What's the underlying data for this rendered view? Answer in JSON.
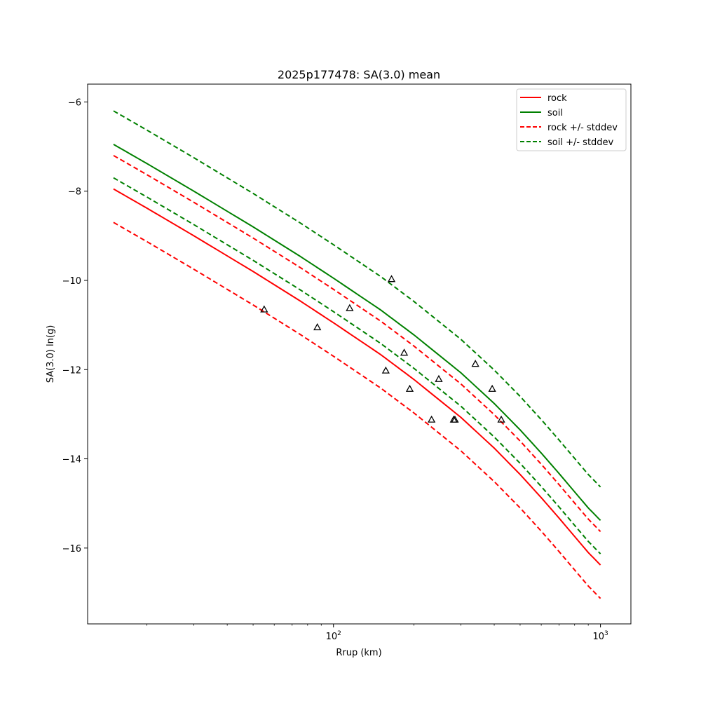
{
  "chart_data": {
    "type": "line",
    "title": "2025p177478: SA(3.0) mean",
    "xlabel": "Rrup (km)",
    "ylabel": "SA(3.0) ln(g)",
    "xscale": "log",
    "xlim": [
      12,
      1300
    ],
    "ylim": [
      -17.7,
      -5.6
    ],
    "grid": false,
    "legend_position": "top-right",
    "x_ticks": [
      {
        "value": 100,
        "base": "10",
        "exp": "2"
      },
      {
        "value": 1000,
        "base": "10",
        "exp": "3"
      }
    ],
    "y_ticks": [
      {
        "value": -6,
        "label": "−6"
      },
      {
        "value": -8,
        "label": "−8"
      },
      {
        "value": -10,
        "label": "−10"
      },
      {
        "value": -12,
        "label": "−12"
      },
      {
        "value": -14,
        "label": "−14"
      },
      {
        "value": -16,
        "label": "−16"
      }
    ],
    "x": [
      15,
      20,
      30,
      50,
      75,
      100,
      150,
      200,
      300,
      400,
      500,
      600,
      700,
      800,
      900,
      1000
    ],
    "series": [
      {
        "name": "rock",
        "color": "#ff0000",
        "dash": "solid",
        "values": [
          -7.95,
          -8.38,
          -9.0,
          -9.8,
          -10.46,
          -10.95,
          -11.66,
          -12.22,
          -13.07,
          -13.76,
          -14.35,
          -14.87,
          -15.33,
          -15.74,
          -16.1,
          -16.38
        ]
      },
      {
        "name": "soil",
        "color": "#008000",
        "dash": "solid",
        "values": [
          -6.95,
          -7.38,
          -8.0,
          -8.8,
          -9.46,
          -9.95,
          -10.66,
          -11.22,
          -12.07,
          -12.76,
          -13.35,
          -13.87,
          -14.33,
          -14.74,
          -15.1,
          -15.38
        ]
      },
      {
        "name": "rock +/- stddev",
        "color": "#ff0000",
        "dash": "dashed",
        "values": [
          -7.2,
          -7.63,
          -8.25,
          -9.05,
          -9.71,
          -10.2,
          -10.91,
          -11.47,
          -12.32,
          -13.01,
          -13.6,
          -14.12,
          -14.58,
          -14.99,
          -15.35,
          -15.63
        ]
      },
      {
        "name": "",
        "color": "#ff0000",
        "dash": "dashed",
        "values": [
          -8.7,
          -9.13,
          -9.75,
          -10.55,
          -11.21,
          -11.7,
          -12.41,
          -12.97,
          -13.82,
          -14.51,
          -15.1,
          -15.62,
          -16.08,
          -16.49,
          -16.85,
          -17.13
        ]
      },
      {
        "name": "soil +/- stddev",
        "color": "#008000",
        "dash": "dashed",
        "values": [
          -6.2,
          -6.63,
          -7.25,
          -8.05,
          -8.71,
          -9.2,
          -9.91,
          -10.47,
          -11.32,
          -12.01,
          -12.6,
          -13.12,
          -13.58,
          -13.99,
          -14.35,
          -14.63
        ]
      },
      {
        "name": "",
        "color": "#008000",
        "dash": "dashed",
        "values": [
          -7.7,
          -8.13,
          -8.75,
          -9.55,
          -10.21,
          -10.7,
          -11.41,
          -11.97,
          -12.82,
          -13.51,
          -14.1,
          -14.62,
          -15.08,
          -15.49,
          -15.85,
          -16.13
        ]
      }
    ],
    "observations": {
      "marker": "triangle",
      "color": "#000000",
      "points": [
        {
          "x": 55,
          "y": -10.65
        },
        {
          "x": 87,
          "y": -11.05
        },
        {
          "x": 115,
          "y": -10.62
        },
        {
          "x": 157,
          "y": -12.02
        },
        {
          "x": 165,
          "y": -9.97
        },
        {
          "x": 184,
          "y": -11.62
        },
        {
          "x": 193,
          "y": -12.43
        },
        {
          "x": 233,
          "y": -13.12
        },
        {
          "x": 248,
          "y": -12.21
        },
        {
          "x": 282,
          "y": -13.12
        },
        {
          "x": 285,
          "y": -13.12
        },
        {
          "x": 340,
          "y": -11.87
        },
        {
          "x": 393,
          "y": -12.43
        },
        {
          "x": 425,
          "y": -13.12
        }
      ]
    },
    "legend": [
      {
        "label": "rock",
        "color": "#ff0000",
        "dash": "solid"
      },
      {
        "label": "soil",
        "color": "#008000",
        "dash": "solid"
      },
      {
        "label": "rock +/- stddev",
        "color": "#ff0000",
        "dash": "dashed"
      },
      {
        "label": "soil +/- stddev",
        "color": "#008000",
        "dash": "dashed"
      }
    ]
  }
}
